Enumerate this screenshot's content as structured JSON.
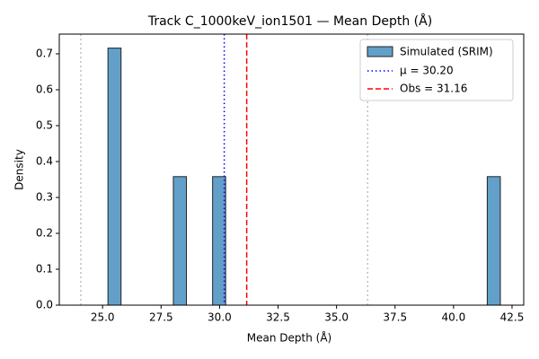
{
  "chart_data": {
    "type": "histogram",
    "title": "Track C_1000keV_ion1501 — Mean Depth (Å)",
    "x_label": "Mean Depth (Å)",
    "y_label": "Density",
    "name": "Simulated (SRIM)",
    "color": "#1f77b4",
    "bins": [
      25.23,
      25.789,
      26.348,
      26.907,
      27.466,
      28.025,
      28.584,
      29.143,
      29.702,
      30.261,
      30.82,
      31.379,
      31.938,
      32.497,
      33.056,
      33.615,
      34.174,
      34.733,
      35.292,
      35.851,
      36.41,
      36.969,
      37.528,
      38.087,
      38.646,
      39.205,
      39.764,
      40.323,
      40.882,
      41.441,
      42.0
    ],
    "values": [
      0.716,
      0,
      0,
      0,
      0,
      0.358,
      0,
      0,
      0.358,
      0,
      0,
      0,
      0,
      0,
      0,
      0,
      0,
      0,
      0,
      0,
      0,
      0,
      0,
      0,
      0,
      0,
      0,
      0,
      0,
      0.358
    ],
    "vlines": [
      {
        "name": "μ = 30.20",
        "value": 30.2,
        "color": "#0000ff",
        "style": "dotted"
      },
      {
        "name": "Obs = 31.16",
        "value": 31.16,
        "color": "#ff0000",
        "style": "dashed"
      }
    ],
    "ref_lines": {
      "values": [
        24.07,
        36.33
      ],
      "color": "#c0c0c0"
    },
    "xlim": [
      23.15,
      43.0
    ],
    "ylim": [
      0,
      0.755
    ],
    "xticks": [
      {
        "value": 25,
        "label": "25.0"
      },
      {
        "value": 27.5,
        "label": "27.5"
      },
      {
        "value": 30,
        "label": "30.0"
      },
      {
        "value": 32.5,
        "label": "32.5"
      },
      {
        "value": 35,
        "label": "35.0"
      },
      {
        "value": 37.5,
        "label": "37.5"
      },
      {
        "value": 40,
        "label": "40.0"
      },
      {
        "value": 42.5,
        "label": "42.5"
      }
    ],
    "yticks": [
      {
        "value": 0,
        "label": "0.0"
      },
      {
        "value": 0.1,
        "label": "0.1"
      },
      {
        "value": 0.2,
        "label": "0.2"
      },
      {
        "value": 0.3,
        "label": "0.3"
      },
      {
        "value": 0.4,
        "label": "0.4"
      },
      {
        "value": 0.5,
        "label": "0.5"
      },
      {
        "value": 0.6,
        "label": "0.6"
      },
      {
        "value": 0.7,
        "label": "0.7"
      }
    ],
    "legend": "upper right"
  }
}
